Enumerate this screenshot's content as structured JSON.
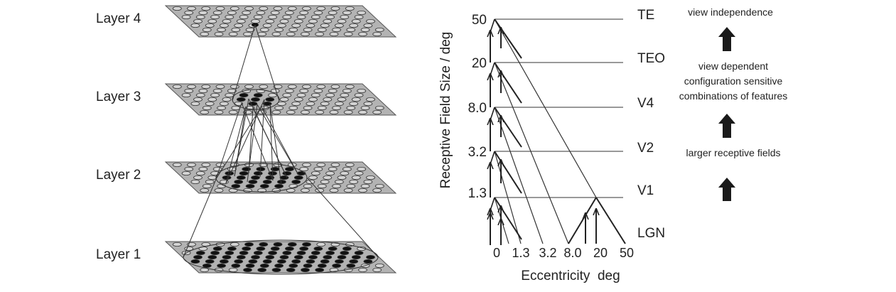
{
  "left_panel": {
    "layers": [
      {
        "label": "Layer 4"
      },
      {
        "label": "Layer 3"
      },
      {
        "label": "Layer 2"
      },
      {
        "label": "Layer 1"
      }
    ]
  },
  "right_panel": {
    "y_axis_title": "Receptive Field Size / deg",
    "x_axis_title": "Eccentricity  deg",
    "y_ticks": [
      "50",
      "20",
      "8.0",
      "3.2",
      "1.3"
    ],
    "x_ticks": [
      "0",
      "1.3",
      "3.2",
      "8.0",
      "20",
      "50"
    ],
    "areas": [
      "TE",
      "TEO",
      "V4",
      "V2",
      "V1",
      "LGN"
    ],
    "annotations": {
      "top": "view independence",
      "middle": [
        "view dependent",
        "configuration sensitive",
        "combinations of features"
      ],
      "bottom": "larger receptive fields"
    }
  }
}
